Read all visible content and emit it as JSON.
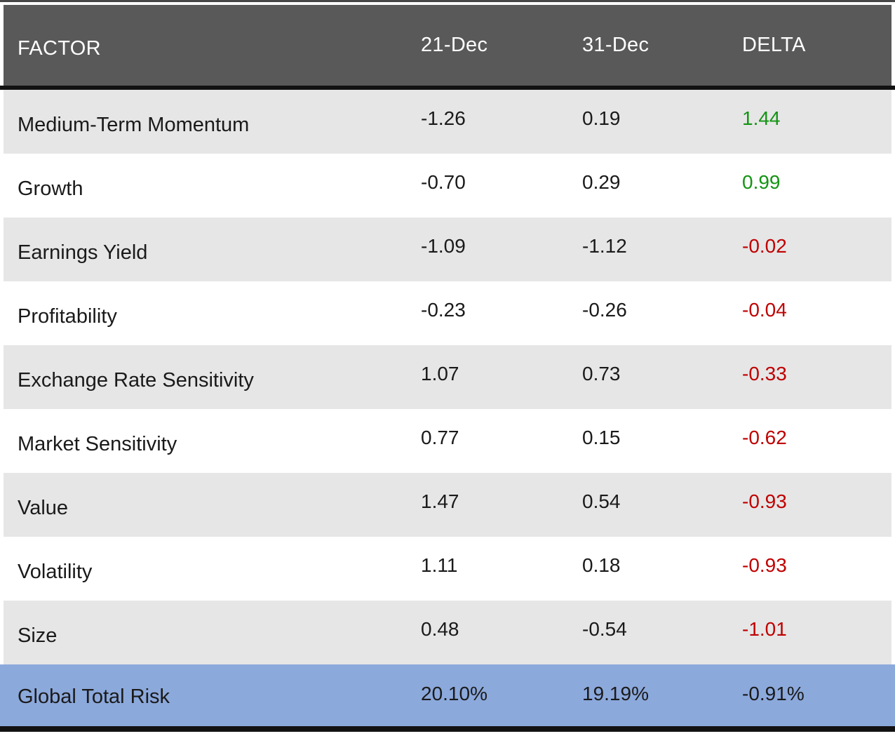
{
  "chart_data": {
    "type": "table",
    "columns": [
      "FACTOR",
      "21-Dec",
      "31-Dec",
      "DELTA"
    ],
    "rows": [
      [
        "Medium-Term Momentum",
        "-1.26",
        "0.19",
        "1.44"
      ],
      [
        "Growth",
        "-0.70",
        "0.29",
        "0.99"
      ],
      [
        "Earnings Yield",
        "-1.09",
        "-1.12",
        "-0.02"
      ],
      [
        "Profitability",
        "-0.23",
        "-0.26",
        "-0.04"
      ],
      [
        "Exchange Rate Sensitivity",
        "1.07",
        "0.73",
        "-0.33"
      ],
      [
        "Market Sensitivity",
        "0.77",
        "0.15",
        "-0.62"
      ],
      [
        "Value",
        "1.47",
        "0.54",
        "-0.93"
      ],
      [
        "Volatility",
        "1.11",
        "0.18",
        "-0.93"
      ],
      [
        "Size",
        "0.48",
        "-0.54",
        "-1.01"
      ]
    ],
    "delta_colors": [
      "#149414",
      "#149414",
      "#c00000",
      "#c00000",
      "#c00000",
      "#c00000",
      "#c00000",
      "#c00000",
      "#c00000"
    ],
    "total_row": [
      "Global Total Risk",
      "20.10%",
      "19.19%",
      "-0.91%"
    ],
    "total_delta_color": "#1a1a1a",
    "layout": {
      "alternating_row_shading": true,
      "total_row_highlighted": true
    }
  },
  "colors": {
    "header_bg": "#595959",
    "header_text": "#ffffff",
    "alt_row_bg": "#e6e6e6",
    "total_row_bg": "#8ca9dc",
    "positive_delta": "#149414",
    "negative_delta": "#c00000",
    "border": "#121212",
    "body_text": "#1a1a1a"
  }
}
